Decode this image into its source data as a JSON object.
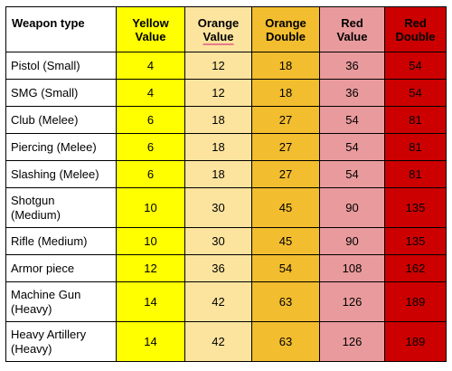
{
  "header": {
    "weapon_type": "Weapon type",
    "yellow_value_l1": "Yellow",
    "yellow_value_l2": "Value",
    "orange_value_l1": "Orange",
    "orange_value_l2": "Value",
    "orange_double_l1": "Orange",
    "orange_double_l2": "Double",
    "red_value_l1": "Red",
    "red_value_l2": "Value",
    "red_double_l1": "Red",
    "red_double_l2": "Double"
  },
  "rows": [
    {
      "name_l1": "Pistol (Small)",
      "name_l2": "",
      "yellow": "4",
      "orange": "12",
      "orange_double": "18",
      "red": "36",
      "red_double": "54"
    },
    {
      "name_l1": "SMG (Small)",
      "name_l2": "",
      "yellow": "4",
      "orange": "12",
      "orange_double": "18",
      "red": "36",
      "red_double": "54"
    },
    {
      "name_l1": "Club (Melee)",
      "name_l2": "",
      "yellow": "6",
      "orange": "18",
      "orange_double": "27",
      "red": "54",
      "red_double": "81"
    },
    {
      "name_l1": "Piercing (Melee)",
      "name_l2": "",
      "yellow": "6",
      "orange": "18",
      "orange_double": "27",
      "red": "54",
      "red_double": "81"
    },
    {
      "name_l1": "Slashing (Melee)",
      "name_l2": "",
      "yellow": "6",
      "orange": "18",
      "orange_double": "27",
      "red": "54",
      "red_double": "81"
    },
    {
      "name_l1": "Shotgun",
      "name_l2": "(Medium)",
      "yellow": "10",
      "orange": "30",
      "orange_double": "45",
      "red": "90",
      "red_double": "135"
    },
    {
      "name_l1": "Rifle (Medium)",
      "name_l2": "",
      "yellow": "10",
      "orange": "30",
      "orange_double": "45",
      "red": "90",
      "red_double": "135"
    },
    {
      "name_l1": "Armor piece",
      "name_l2": "",
      "yellow": "12",
      "orange": "36",
      "orange_double": "54",
      "red": "108",
      "red_double": "162"
    },
    {
      "name_l1": "Machine Gun",
      "name_l2": "(Heavy)",
      "yellow": "14",
      "orange": "42",
      "orange_double": "63",
      "red": "126",
      "red_double": "189"
    },
    {
      "name_l1": "Heavy Artillery",
      "name_l2": "(Heavy)",
      "yellow": "14",
      "orange": "42",
      "orange_double": "63",
      "red": "126",
      "red_double": "189"
    }
  ],
  "colors": {
    "yellow": "#ffff00",
    "orange": "#fde49e",
    "orange_double": "#f2bd2e",
    "red": "#e99a9c",
    "red_double": "#cc0000"
  }
}
